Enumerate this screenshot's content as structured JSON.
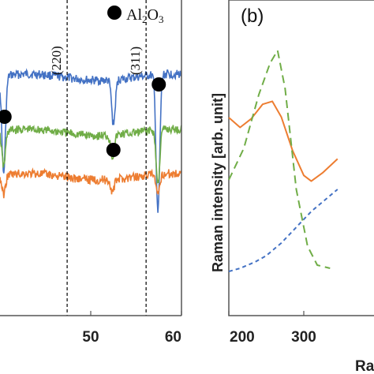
{
  "chart_data": [
    {
      "panel": "a",
      "type": "line",
      "xlabel": "",
      "xlim": [
        40,
        60
      ],
      "x_ticks": [
        "50",
        "60"
      ],
      "legend": {
        "marker": "filled-circle",
        "label_main": "Al",
        "label_sub1": "2",
        "label_mid": "O",
        "label_sub2": "3"
      },
      "reference_lines": [
        {
          "x": 47.4,
          "label": "(220)"
        },
        {
          "x": 56.1,
          "label": "(311)"
        }
      ],
      "peak_markers_x": [
        40.5,
        52.5,
        57.5
      ],
      "series": [
        {
          "color": "#4472c4",
          "baseline": 0.245,
          "peaks": [
            [
              40.4,
              0.31
            ],
            [
              52.5,
              0.14
            ],
            [
              57.4,
              0.44
            ]
          ]
        },
        {
          "color": "#70ad47",
          "baseline": 0.42,
          "peaks": [
            [
              40.4,
              0.11
            ],
            [
              52.4,
              0.07
            ],
            [
              57.4,
              0.17
            ]
          ]
        },
        {
          "color": "#ed7d31",
          "baseline": 0.56,
          "peaks": [
            [
              40.4,
              0.06
            ],
            [
              52.4,
              0.04
            ],
            [
              57.4,
              0.07
            ]
          ]
        }
      ]
    },
    {
      "panel": "b",
      "type": "line",
      "panel_label": "(b)",
      "ylabel": "Raman intensity [arb. unit]",
      "xlabel_visible": "Ra",
      "xlim": [
        200,
        400
      ],
      "x_ticks": [
        {
          "value": 200,
          "label": "200"
        },
        {
          "value": 300,
          "label": "300"
        }
      ],
      "series": [
        {
          "color": "#ed7d31",
          "style": "solid",
          "points": [
            [
              200,
              0.63
            ],
            [
              215,
              0.6
            ],
            [
              230,
              0.62
            ],
            [
              245,
              0.67
            ],
            [
              258,
              0.68
            ],
            [
              270,
              0.63
            ],
            [
              285,
              0.52
            ],
            [
              300,
              0.44
            ],
            [
              310,
              0.43
            ],
            [
              325,
              0.45
            ],
            [
              345,
              0.5
            ]
          ]
        },
        {
          "color": "#70ad47",
          "style": "dashed",
          "points": [
            [
              200,
              0.43
            ],
            [
              220,
              0.53
            ],
            [
              240,
              0.7
            ],
            [
              255,
              0.8
            ],
            [
              265,
              0.84
            ],
            [
              275,
              0.72
            ],
            [
              290,
              0.4
            ],
            [
              305,
              0.22
            ],
            [
              318,
              0.16
            ],
            [
              335,
              0.15
            ]
          ]
        },
        {
          "color": "#4472c4",
          "style": "dashed",
          "points": [
            [
              200,
              0.14
            ],
            [
              215,
              0.15
            ],
            [
              235,
              0.17
            ],
            [
              250,
              0.19
            ],
            [
              270,
              0.23
            ],
            [
              290,
              0.28
            ],
            [
              310,
              0.33
            ],
            [
              330,
              0.37
            ],
            [
              345,
              0.4
            ]
          ]
        }
      ]
    }
  ]
}
